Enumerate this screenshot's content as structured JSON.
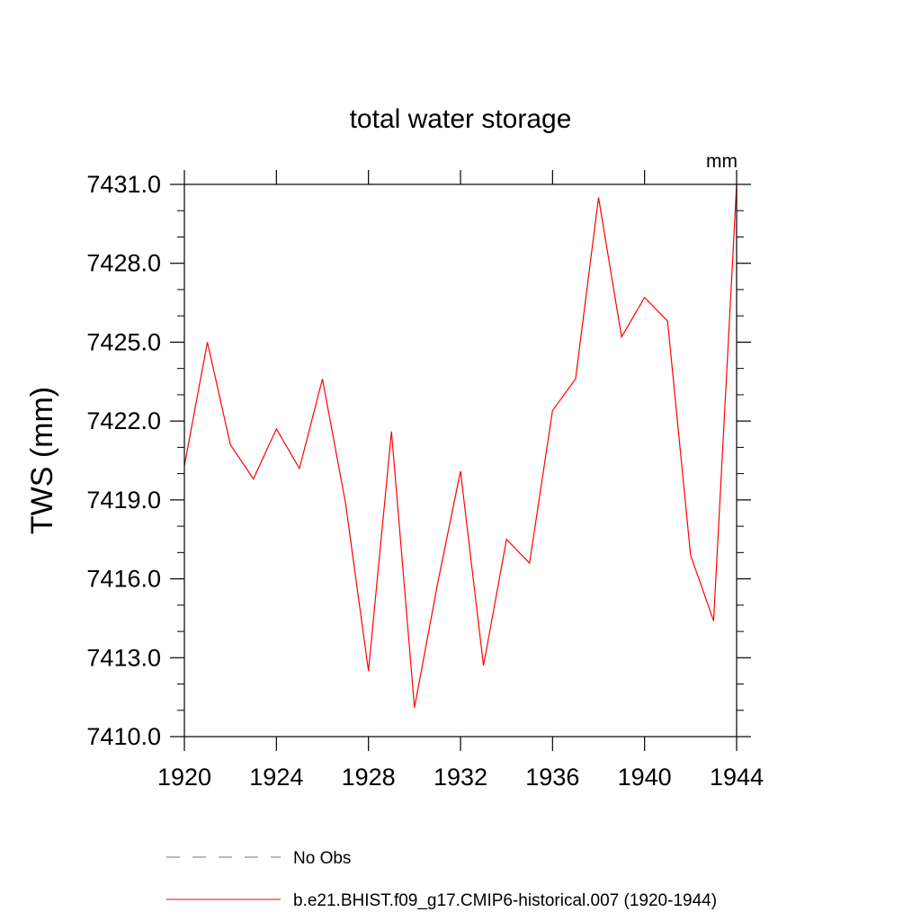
{
  "chart_data": {
    "type": "line",
    "title": "total water storage",
    "units_label": "mm",
    "ylabel": "TWS  (mm)",
    "xlabel": "",
    "xlim": [
      1920,
      1944
    ],
    "ylim": [
      7410.0,
      7431.0
    ],
    "x_ticks": [
      1920,
      1924,
      1928,
      1932,
      1936,
      1940,
      1944
    ],
    "x_tick_labels": [
      "1920",
      "1924",
      "1928",
      "1932",
      "1936",
      "1940",
      "1944"
    ],
    "y_ticks": [
      7410.0,
      7413.0,
      7416.0,
      7419.0,
      7422.0,
      7425.0,
      7428.0,
      7431.0
    ],
    "y_tick_labels": [
      "7410.0",
      "7413.0",
      "7416.0",
      "7419.0",
      "7422.0",
      "7425.0",
      "7428.0",
      "7431.0"
    ],
    "grid": false,
    "legend_position": "bottom",
    "legend": [
      {
        "label": "No Obs",
        "style": "dashed",
        "color": "#6a6ab8"
      },
      {
        "label": "b.e21.BHIST.f09_g17.CMIP6-historical.007 (1920-1944)",
        "style": "solid",
        "color": "#ff0000"
      }
    ],
    "series": [
      {
        "name": "b.e21.BHIST.f09_g17.CMIP6-historical.007 (1920-1944)",
        "color": "#ff0000",
        "x": [
          1920,
          1921,
          1922,
          1923,
          1924,
          1925,
          1926,
          1927,
          1928,
          1929,
          1930,
          1931,
          1932,
          1933,
          1934,
          1935,
          1936,
          1937,
          1938,
          1939,
          1940,
          1941,
          1942,
          1943,
          1944
        ],
        "values": [
          7420.3,
          7425.0,
          7421.1,
          7419.8,
          7421.7,
          7420.2,
          7423.6,
          7418.9,
          7412.5,
          7421.6,
          7411.1,
          7415.8,
          7420.1,
          7412.7,
          7417.5,
          7416.6,
          7422.4,
          7423.6,
          7430.5,
          7425.2,
          7426.7,
          7425.8,
          7416.9,
          7414.4,
          7431.0
        ]
      }
    ]
  }
}
